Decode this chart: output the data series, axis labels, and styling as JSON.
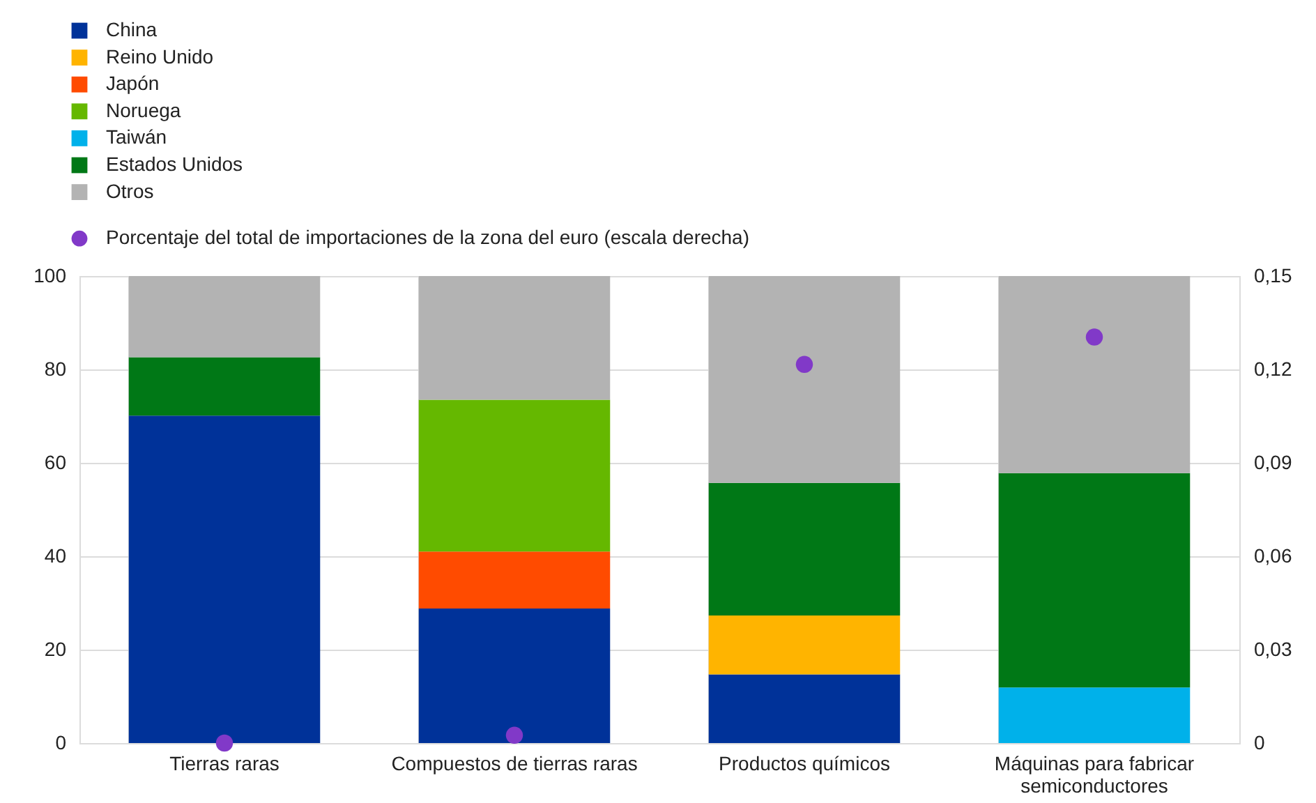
{
  "chart_data": {
    "type": "bar",
    "stacked": true,
    "categories": [
      "Tierras raras",
      "Compuestos de tierras raras",
      "Productos químicos",
      "Máquinas para fabricar semiconductores"
    ],
    "ylim": [
      0,
      100
    ],
    "yticks": [
      0,
      20,
      40,
      60,
      80,
      100
    ],
    "y2lim": [
      0,
      0.15
    ],
    "y2ticks": [
      0,
      {
        "value": 0.03,
        "label": "0,03"
      },
      {
        "value": 0.06,
        "label": "0,06"
      },
      {
        "value": 0.09,
        "label": "0,09"
      },
      {
        "value": 0.12,
        "label": "0,12"
      },
      {
        "value": 0.15,
        "label": "0,15"
      }
    ],
    "grid": true,
    "legend": "top left",
    "marker": "circle",
    "series": [
      {
        "name": "China",
        "color": "#003299",
        "values": [
          70.1,
          28.8,
          14.7,
          null
        ]
      },
      {
        "name": "Reino Unido",
        "color": "#ffb400",
        "values": [
          null,
          null,
          12.6,
          null
        ]
      },
      {
        "name": "Japón",
        "color": "#ff4b00",
        "values": [
          null,
          12.2,
          null,
          null
        ]
      },
      {
        "name": "Noruega",
        "color": "#65b800",
        "values": [
          null,
          32.5,
          null,
          null
        ]
      },
      {
        "name": "Taiwán",
        "color": "#00b1ea",
        "values": [
          null,
          null,
          null,
          11.9
        ]
      },
      {
        "name": "Estados Unidos",
        "color": "#007816",
        "values": [
          12.5,
          null,
          28.4,
          45.9
        ]
      },
      {
        "name": "Otros",
        "color": "#b3b3b3",
        "values": [
          17.4,
          26.5,
          44.3,
          42.2
        ]
      },
      {
        "name": "Porcentaje del total de importaciones de la zona del euro (escala derecha)",
        "type": "scatter",
        "axis": "y2",
        "color": "#8139c8",
        "values": [
          0,
          0.0025,
          0.1216,
          0.1304
        ]
      }
    ]
  }
}
